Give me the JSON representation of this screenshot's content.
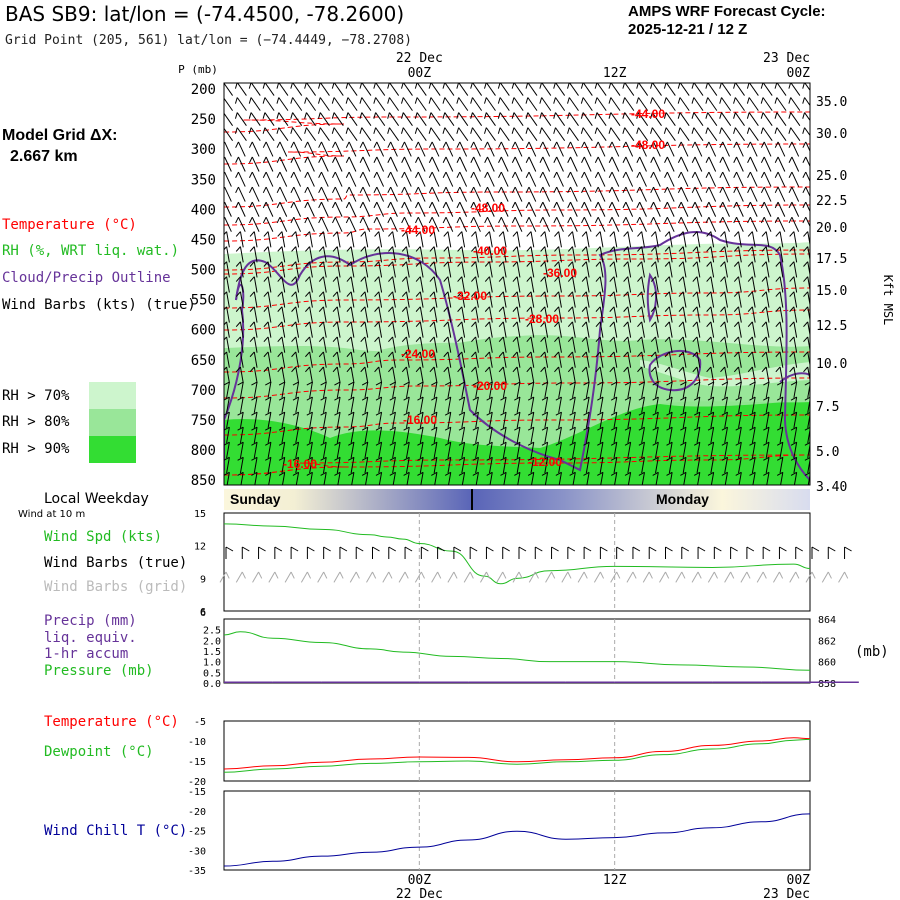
{
  "header": {
    "title": "BAS SB9:  lat/lon = (-74.4500, -78.2600)",
    "grid_point": "Grid Point (205, 561) lat/lon = (−74.4449, −78.2708)",
    "cycle_line1": "AMPS WRF Forecast Cycle:",
    "cycle_line2": "2025-12-21 / 12  Z"
  },
  "legend": {
    "model_grid": "Model Grid ΔX:",
    "model_grid_value": "2.667 km",
    "temperature": "Temperature (°C)",
    "rh": "RH (%, WRT liq. wat.)",
    "cloud": "Cloud/Precip Outline",
    "wind": "Wind Barbs (kts) (true)",
    "rh70": "RH > 70%",
    "rh80": "RH > 80%",
    "rh90": "RH > 90%",
    "local_weekday": "Local Weekday",
    "wind_at_10m": "Wind at 10 m",
    "wind_spd": "Wind Spd (kts)",
    "wind_barbs_true": "Wind Barbs (true)",
    "wind_barbs_grid": "Wind Barbs (grid)",
    "precip": "Precip (mm)",
    "liq_equiv": "liq. equiv.",
    "accum": "1-hr accum",
    "pressure": "Pressure (mb)",
    "pressure_unit": "(mb)",
    "temp2": "Temperature (°C)",
    "dewpoint": "Dewpoint (°C)",
    "windchill": "Wind Chill T (°C)",
    "p_label": "P (mb)",
    "kft": "Kft MSL",
    "sunday": "Sunday",
    "monday": "Monday"
  },
  "colors": {
    "temperature": "#ff0000",
    "rh": "#22bb22",
    "cloud": "#663399",
    "wind": "#000000",
    "wind_grid": "#aaaaaa",
    "rh70": "#cdf5cd",
    "rh80": "#99e699",
    "rh90": "#33dd33",
    "precip": "#663399",
    "pressure": "#22bb22",
    "dewpoint": "#22bb22",
    "windchill": "#000099"
  },
  "chart_data": [
    {
      "type": "contour",
      "name": "cross-section",
      "x_ticks_top": [
        {
          "label": "00Z",
          "date": "22 Dec",
          "hour": 12
        },
        {
          "label": "12Z",
          "hour": 24
        },
        {
          "label": "00Z",
          "date": "23 Dec",
          "hour": 36
        }
      ],
      "xlim_hours": [
        0,
        36
      ],
      "pressure_ticks": [
        200,
        250,
        300,
        350,
        400,
        450,
        500,
        550,
        600,
        650,
        700,
        750,
        800,
        850
      ],
      "height_ticks": [
        "35.0",
        "30.0",
        "25.0",
        "22.5",
        "20.0",
        "17.5",
        "15.0",
        "12.5",
        "10.0",
        "7.5",
        "5.0",
        "3.40"
      ],
      "temperature_labels": [
        "-44.00",
        "-48.00",
        "-48.00",
        "-44.00",
        "-40.00",
        "-36.00",
        "-32.00",
        "-28.00",
        "-24.00",
        "-20.00",
        "-16.00",
        "-16.00",
        "-12.00"
      ]
    },
    {
      "type": "line",
      "name": "wind-speed",
      "ylim": [
        6,
        15
      ],
      "yticks": [
        6,
        9,
        12,
        15
      ],
      "x": [
        0,
        3,
        6,
        9,
        10,
        11,
        12,
        14,
        16,
        17,
        18,
        20,
        24,
        30,
        35,
        36
      ],
      "values": [
        14,
        13.8,
        13.5,
        13,
        12.8,
        12.6,
        12.2,
        11.5,
        9.2,
        8.5,
        9,
        9.7,
        10.1,
        10,
        10.3,
        9.9
      ]
    },
    {
      "type": "line",
      "name": "pressure",
      "ylim": [
        858,
        864
      ],
      "yticks": [
        858,
        860,
        862,
        864
      ],
      "precip_yticks": [
        "0.0",
        "0.5",
        "1.0",
        "1.5",
        "2.0",
        "2.5"
      ],
      "x": [
        0,
        1,
        3,
        6,
        9,
        11,
        14,
        17,
        20,
        24,
        28,
        32,
        36
      ],
      "values": [
        862.5,
        862.8,
        862.2,
        861.8,
        861.2,
        860.9,
        860.5,
        860.3,
        860.0,
        860.0,
        859.7,
        859.5,
        859.2
      ],
      "precip_values": [
        0,
        0,
        0,
        0,
        0.02,
        0.04,
        0.03,
        0.02,
        0,
        0.02,
        0.02,
        0.01,
        0
      ]
    },
    {
      "type": "line",
      "name": "temperature-dewpoint",
      "ylim": [
        -20,
        -5
      ],
      "yticks": [
        -20,
        -15,
        -10,
        -5
      ],
      "x": [
        0,
        3,
        6,
        9,
        12,
        15,
        18,
        21,
        24,
        27,
        30,
        33,
        35,
        36
      ],
      "series": [
        {
          "name": "Temperature",
          "values": [
            -17,
            -16.2,
            -15.3,
            -14.5,
            -14,
            -14.1,
            -15.2,
            -14.7,
            -14.2,
            -12.6,
            -11.1,
            -10,
            -9.2,
            -9.4
          ]
        },
        {
          "name": "Dewpoint",
          "values": [
            -17.8,
            -17,
            -16.3,
            -15.6,
            -15.2,
            -15,
            -15.8,
            -15.2,
            -14.8,
            -13.4,
            -12,
            -10.7,
            -9.8,
            -9.6
          ]
        }
      ]
    },
    {
      "type": "line",
      "name": "wind-chill",
      "ylim": [
        -35,
        -15
      ],
      "yticks": [
        -35,
        -30,
        -25,
        -20,
        -15
      ],
      "x": [
        0,
        3,
        6,
        9,
        12,
        15,
        18,
        21,
        24,
        27,
        30,
        33,
        36
      ],
      "values": [
        -34,
        -32.8,
        -31.5,
        -30.5,
        -29.2,
        -27.4,
        -25.2,
        -27.2,
        -26.8,
        -25.6,
        -24.3,
        -22.8,
        -20.8
      ]
    }
  ],
  "bottom_axis": {
    "tick1": "00Z",
    "date1": "22 Dec",
    "tick2": "12Z",
    "tick3": "00Z",
    "date3": "23 Dec"
  }
}
